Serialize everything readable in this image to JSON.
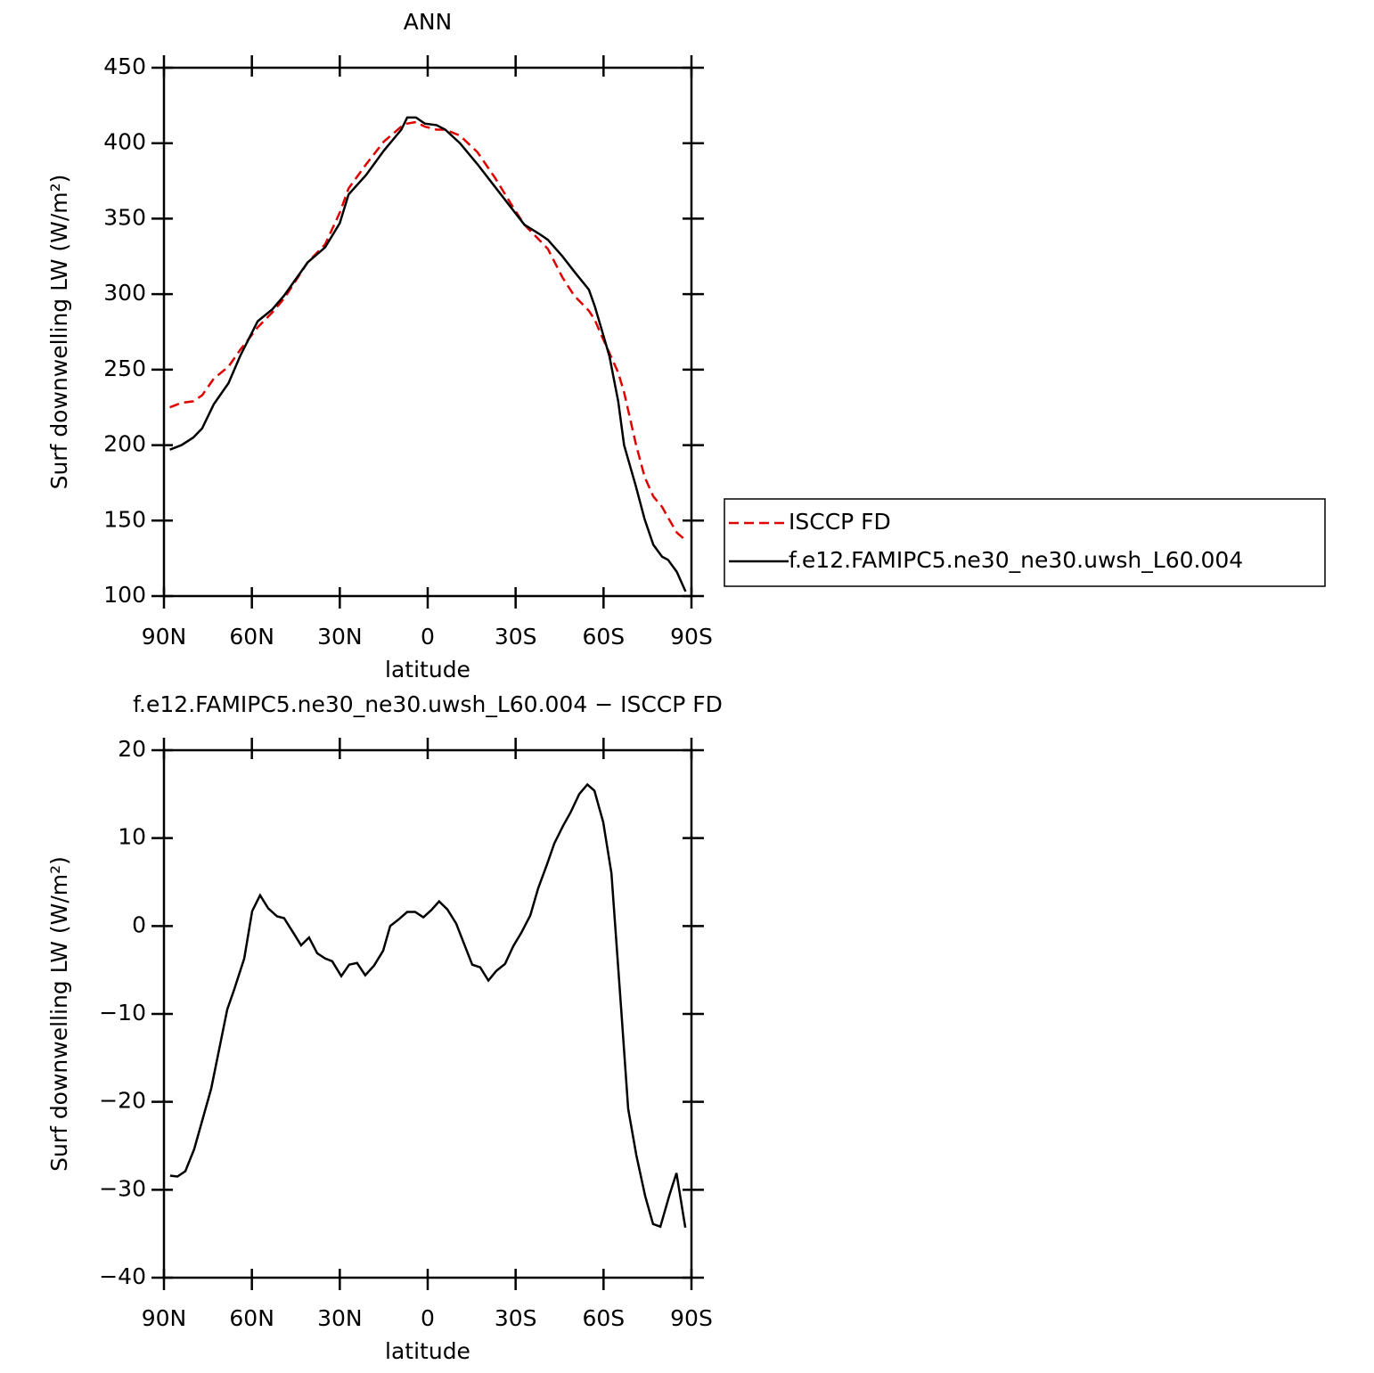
{
  "chart_data": [
    {
      "type": "line",
      "title": "ANN",
      "xlabel": "latitude",
      "ylabel": "Surf downwelling LW (W/m²)",
      "xlim": [
        90,
        -90
      ],
      "xticks": [
        {
          "value": 90,
          "label": "90N"
        },
        {
          "value": 60,
          "label": "60N"
        },
        {
          "value": 30,
          "label": "30N"
        },
        0,
        {
          "value": -30,
          "label": "30S"
        },
        {
          "value": -60,
          "label": "60S"
        },
        {
          "value": -90,
          "label": "90S"
        }
      ],
      "ylim": [
        100,
        450
      ],
      "yticks": [
        100,
        150,
        200,
        250,
        300,
        350,
        400,
        450
      ],
      "legend": "outside right",
      "x": [
        88,
        84,
        80,
        77,
        73,
        68,
        64,
        58,
        53,
        49,
        41,
        35,
        30,
        27,
        21,
        15,
        9,
        7,
        4,
        1,
        -3,
        -6,
        -11,
        -17,
        -23,
        -29,
        -33,
        -38,
        -41,
        -46,
        -50,
        -55,
        -57,
        -59,
        -62,
        -65,
        -67,
        -71,
        -74,
        -77,
        -80,
        -82,
        -85,
        -88
      ],
      "series": [
        {
          "name": "ISCCP FD",
          "color": "#e00000",
          "linestyle": "dashed",
          "values": [
            225,
            228,
            229,
            233,
            244,
            252,
            263,
            278,
            288,
            297,
            321,
            333,
            354,
            370,
            386,
            401,
            411,
            413,
            414,
            411,
            409,
            409,
            405,
            394,
            377,
            358,
            346,
            336,
            330,
            311,
            299,
            289,
            283,
            274,
            261,
            248,
            235,
            201,
            179,
            166,
            159,
            152,
            142,
            137
          ]
        },
        {
          "name": "f.e12.FAMIPC5.ne30_ne30.uwsh_L60.004",
          "color": "#000000",
          "linestyle": "solid",
          "values": [
            197,
            200,
            205,
            211,
            227,
            241,
            259,
            282,
            290,
            299,
            321,
            331,
            347,
            366,
            379,
            395,
            409,
            417,
            417,
            413,
            412,
            409,
            400,
            386,
            371,
            356,
            346,
            340,
            336,
            325,
            315,
            303,
            292,
            279,
            259,
            229,
            200,
            173,
            151,
            134,
            126,
            124,
            116,
            103
          ]
        }
      ]
    },
    {
      "type": "line",
      "title": "f.e12.FAMIPC5.ne30_ne30.uwsh_L60.004 − ISCCP FD",
      "xlabel": "latitude",
      "ylabel": "Surf downwelling LW (W/m²)",
      "xlim": [
        90,
        -90
      ],
      "xticks": [
        {
          "value": 90,
          "label": "90N"
        },
        {
          "value": 60,
          "label": "60N"
        },
        {
          "value": 30,
          "label": "30N"
        },
        0,
        {
          "value": -30,
          "label": "30S"
        },
        {
          "value": -60,
          "label": "60S"
        },
        {
          "value": -90,
          "label": "90S"
        }
      ],
      "ylim": [
        -40,
        20
      ],
      "yticks": [
        {
          "value": -40,
          "label": "−40"
        },
        {
          "value": -30,
          "label": "−30"
        },
        {
          "value": -20,
          "label": "−20"
        },
        {
          "value": -10,
          "label": "−10"
        },
        0,
        10,
        20
      ],
      "color": "#000000",
      "x": [
        87.9,
        85.4,
        82.7,
        79.7,
        73.9,
        68.4,
        66.0,
        62.6,
        59.9,
        57.2,
        54.4,
        51.4,
        49.0,
        45.6,
        43.2,
        40.5,
        37.7,
        35.0,
        32.6,
        29.5,
        26.8,
        24.1,
        21.3,
        18.3,
        15.2,
        12.8,
        10.1,
        7.0,
        4.3,
        1.5,
        -1.2,
        -3.9,
        -6.7,
        -9.7,
        -12.5,
        -15.2,
        -17.9,
        -20.7,
        -23.4,
        -26.4,
        -29.2,
        -31.9,
        -35.0,
        -37.7,
        -40.8,
        -43.2,
        -46.2,
        -48.7,
        -51.7,
        -54.5,
        -56.9,
        -59.9,
        -62.7,
        -66.0,
        -68.4,
        -71.2,
        -74.2,
        -76.9,
        -79.4,
        -82.5,
        -84.9,
        -87.9
      ],
      "values": [
        -28.4,
        -28.5,
        -27.9,
        -25.4,
        -18.5,
        -9.5,
        -7.2,
        -3.7,
        1.7,
        3.5,
        2.0,
        1.1,
        0.9,
        -0.9,
        -2.2,
        -1.3,
        -3.1,
        -3.7,
        -4.0,
        -5.7,
        -4.4,
        -4.2,
        -5.6,
        -4.5,
        -2.8,
        0.0,
        0.7,
        1.6,
        1.6,
        1.0,
        1.8,
        2.8,
        1.9,
        0.3,
        -2.1,
        -4.4,
        -4.7,
        -6.2,
        -5.1,
        -4.3,
        -2.3,
        -0.8,
        1.2,
        4.3,
        7.1,
        9.4,
        11.4,
        12.9,
        15.0,
        16.1,
        15.4,
        11.8,
        6.0,
        -9.4,
        -20.8,
        -26.1,
        -30.7,
        -33.9,
        -34.2,
        -30.6,
        -28.1,
        -34.3
      ]
    }
  ]
}
